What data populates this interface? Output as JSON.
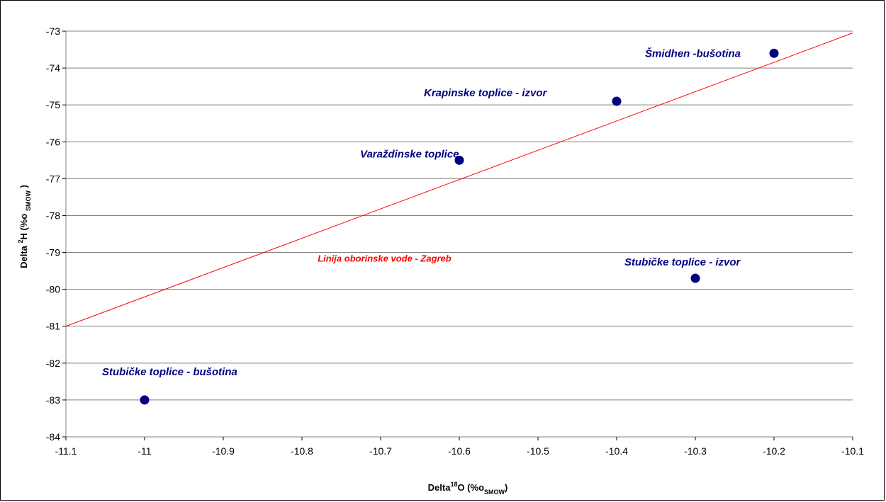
{
  "chart_data": {
    "type": "scatter",
    "title": "",
    "xlabel": {
      "prefix": "Delta",
      "sup": "18",
      "main": "O (%o",
      "sub": "SMOW",
      "suffix": ")"
    },
    "ylabel": {
      "prefix": "Delta ",
      "sup": "2",
      "main": "H (%o ",
      "sub": "SMOW",
      "suffix": " )"
    },
    "xlim": [
      -11.1,
      -10.1
    ],
    "ylim": [
      -84,
      -73
    ],
    "x_ticks": [
      -11.1,
      -11,
      -10.9,
      -10.8,
      -10.7,
      -10.6,
      -10.5,
      -10.4,
      -10.3,
      -10.2,
      -10.1
    ],
    "x_tick_labels": [
      "-11.1",
      "-11",
      "-10.9",
      "-10.8",
      "-10.7",
      "-10.6",
      "-10.5",
      "-10.4",
      "-10.3",
      "-10.2",
      "-10.1"
    ],
    "y_ticks": [
      -73,
      -74,
      -75,
      -76,
      -77,
      -78,
      -79,
      -80,
      -81,
      -82,
      -83,
      -84
    ],
    "y_tick_labels": [
      "-73",
      "-74",
      "-75",
      "-76",
      "-77",
      "-78",
      "-79",
      "-80",
      "-81",
      "-82",
      "-83",
      "-84"
    ],
    "grid": "horizontal",
    "points": [
      {
        "x": -11.0,
        "y": -83.0,
        "label": "Stubičke toplice - bušotina"
      },
      {
        "x": -10.6,
        "y": -76.5,
        "label": "Varaždinske toplice"
      },
      {
        "x": -10.4,
        "y": -74.9,
        "label": "Krapinske toplice - izvor"
      },
      {
        "x": -10.3,
        "y": -79.7,
        "label": "Stubičke toplice - izvor"
      },
      {
        "x": -10.2,
        "y": -73.6,
        "label": "Šmidhen -bušotina"
      }
    ],
    "reference_line": {
      "label": "Linija oborinske vode - Zagreb",
      "x": [
        -11.1,
        -10.1
      ],
      "y": [
        -81.0,
        -73.05
      ]
    },
    "colors": {
      "points": "#000080",
      "line": "#ff0000",
      "grid": "#808080",
      "labels": "#000080"
    }
  }
}
